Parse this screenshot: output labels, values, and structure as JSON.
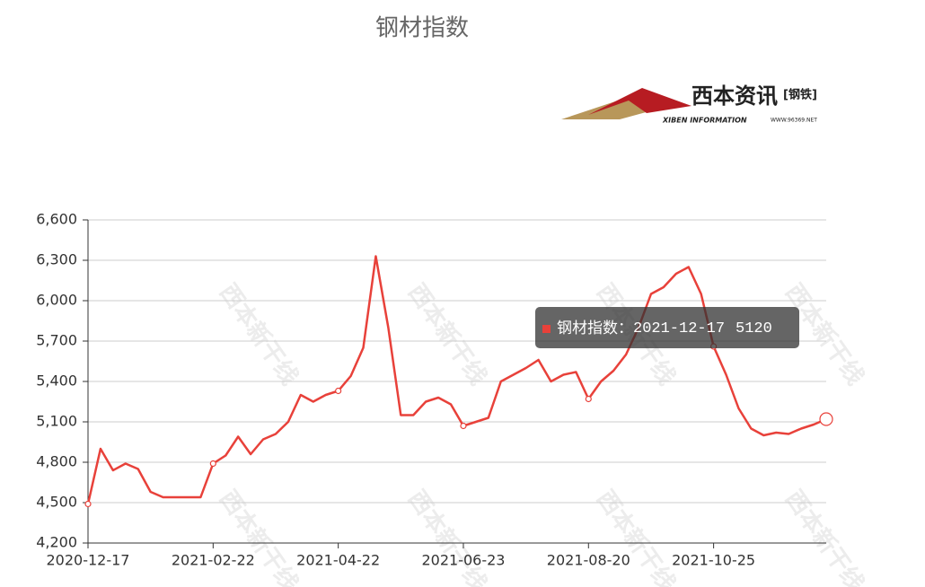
{
  "chart_data": {
    "type": "line",
    "title": "钢材指数",
    "logo": {
      "brand": "西本资讯",
      "tag": "[钢铁]",
      "english": "XIBEN INFORMATION",
      "site": "WWW.96369.NET"
    },
    "watermark": "西本新干线",
    "categories": [
      "2020-12-17",
      null,
      null,
      null,
      null,
      null,
      null,
      null,
      null,
      null,
      "2021-02-22",
      null,
      null,
      null,
      null,
      null,
      null,
      null,
      null,
      null,
      "2021-04-22",
      null,
      null,
      null,
      null,
      null,
      null,
      null,
      null,
      null,
      "2021-06-23",
      null,
      null,
      null,
      null,
      null,
      null,
      null,
      null,
      null,
      "2021-08-20",
      null,
      null,
      null,
      null,
      null,
      null,
      null,
      null,
      null,
      "2021-10-25",
      null,
      null,
      null,
      null,
      null,
      null,
      null,
      null,
      "2021-12-17"
    ],
    "series": [
      {
        "name": "钢材指数",
        "color": "#e8413a",
        "values": [
          4490,
          4900,
          4740,
          4790,
          4750,
          4580,
          4540,
          4540,
          4540,
          4540,
          4790,
          4850,
          4990,
          4860,
          4970,
          5010,
          5100,
          5300,
          5250,
          5300,
          5330,
          5440,
          5650,
          6330,
          5800,
          5150,
          5150,
          5250,
          5280,
          5230,
          5070,
          5100,
          5130,
          5400,
          5450,
          5500,
          5560,
          5400,
          5450,
          5470,
          5270,
          5400,
          5480,
          5600,
          5800,
          6050,
          6100,
          6200,
          6250,
          6050,
          5660,
          5450,
          5200,
          5050,
          5000,
          5020,
          5010,
          5050,
          5080,
          5120
        ]
      }
    ],
    "ylim": [
      4200,
      6600
    ],
    "yticks": [
      {
        "value": 4200,
        "label": "4,200"
      },
      {
        "value": 4500,
        "label": "4,500"
      },
      {
        "value": 4800,
        "label": "4,800"
      },
      {
        "value": 5100,
        "label": "5,100"
      },
      {
        "value": 5400,
        "label": "5,400"
      },
      {
        "value": 5700,
        "label": "5,700"
      },
      {
        "value": 6000,
        "label": "6,000"
      },
      {
        "value": 6300,
        "label": "6,300"
      },
      {
        "value": 6600,
        "label": "6,600"
      }
    ],
    "grid": true,
    "tooltip_separator": "："
  }
}
